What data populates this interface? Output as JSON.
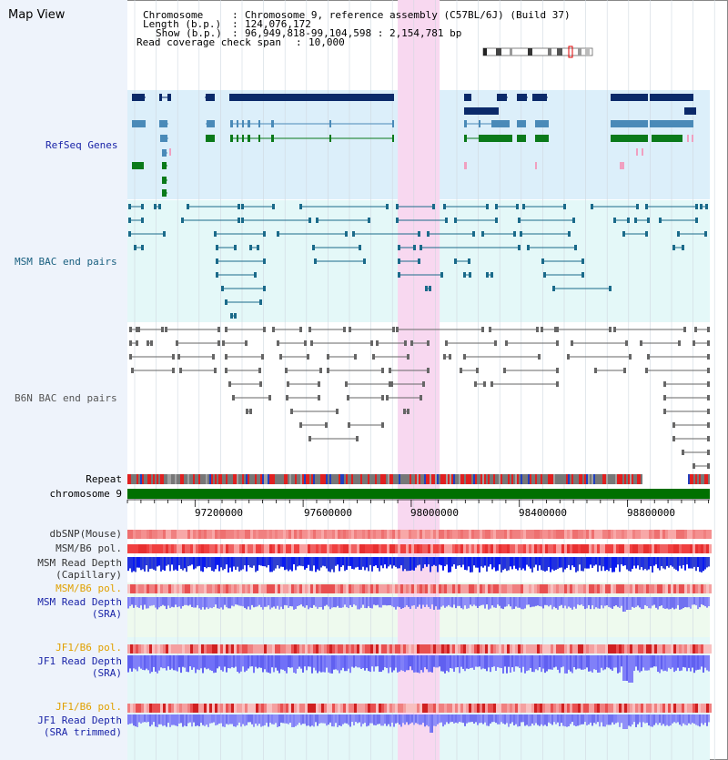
{
  "app": {
    "title": "Map View"
  },
  "header": {
    "chromosome_label": "Chromosome",
    "chromosome_value": "Chromosome 9, reference assembly (C57BL/6J) (Build 37)",
    "length_label": "Length (b.p.)",
    "length_value": "124,076,172",
    "show_label": "Show (b.p.)",
    "show_value": "96,949,818-99,104,598 : 2,154,781 bp",
    "span_label": "Read coverage check span",
    "span_value": "10,000"
  },
  "tracks": {
    "refseq": {
      "label": "RefSeq Genes",
      "color": "#1a24a8"
    },
    "msm_bac": {
      "label": "MSM BAC end pairs",
      "color": "#1a6080"
    },
    "b6n_bac": {
      "label": "B6N BAC end pairs",
      "color": "#555555"
    },
    "repeat": {
      "label": "Repeat"
    },
    "chromosome": {
      "label": "chromosome 9"
    },
    "dbsnp": {
      "label": "dbSNP(Mouse)"
    },
    "msm_pol": {
      "label": "MSM/B6 pol."
    },
    "msm_depth_cap": {
      "label1": "MSM Read Depth",
      "label2": "(Capillary)"
    },
    "msm_pol2": {
      "label": "MSM/B6 pol.",
      "color": "#e0a000"
    },
    "msm_depth_sra": {
      "label1": "MSM Read Depth",
      "label2": "(SRA)",
      "color": "#1a24a8"
    },
    "jf1_pol": {
      "label": "JF1/B6 pol.",
      "color": "#e0a000"
    },
    "jf1_depth_sra": {
      "label1": "JF1 Read Depth",
      "label2": "(SRA)",
      "color": "#1a24a8"
    },
    "jf1_pol2": {
      "label": "JF1/B6 pol.",
      "color": "#e0a000"
    },
    "jf1_depth_trim": {
      "label1": "JF1 Read Depth",
      "label2": "(SRA trimmed)",
      "color": "#1a24a8"
    }
  },
  "axis": {
    "ticks": [
      "97200000",
      "97600000",
      "98000000",
      "98400000",
      "98800000"
    ],
    "tick_values": [
      97200000,
      97600000,
      98000000,
      98400000,
      98800000
    ],
    "start": 96949818,
    "end": 99104598
  },
  "highlight": {
    "start_bp": 97950000,
    "end_bp": 98105000,
    "color": "#f8d8f0"
  }
}
